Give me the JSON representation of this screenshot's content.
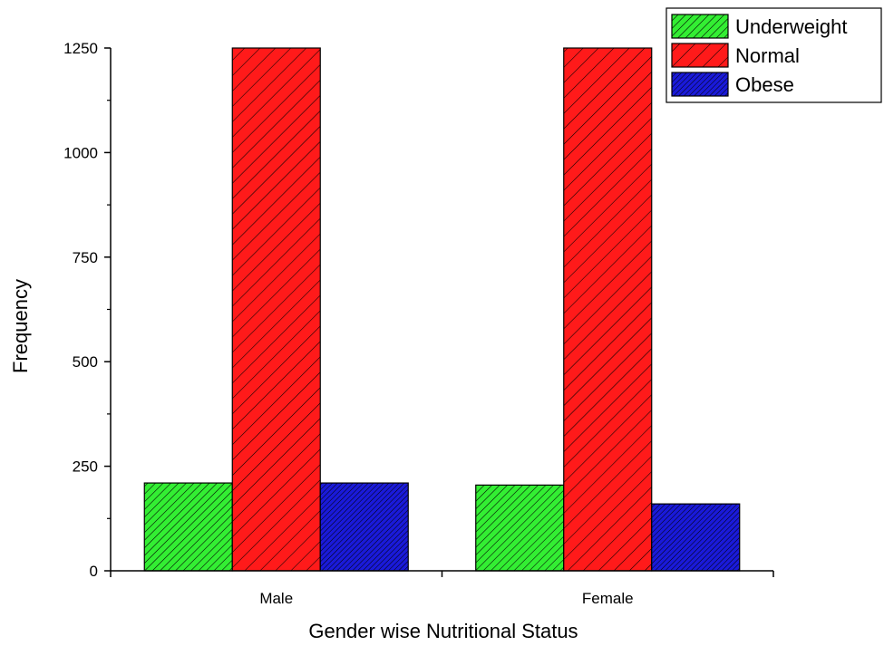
{
  "chart_data": {
    "type": "bar",
    "title": "",
    "xlabel": "Gender wise Nutritional Status",
    "ylabel": "Frequency",
    "categories": [
      "Male",
      "Female"
    ],
    "series": [
      {
        "name": "Underweight",
        "values": [
          210,
          205
        ],
        "color": "#33ee33"
      },
      {
        "name": "Normal",
        "values": [
          1250,
          1250
        ],
        "color": "#ff1a1a"
      },
      {
        "name": "Obese",
        "values": [
          210,
          160
        ],
        "color": "#1a1ad9"
      }
    ],
    "ylim": [
      0,
      1250
    ],
    "yticks": [
      "0",
      "250",
      "500",
      "750",
      "1000",
      "1250"
    ],
    "grid": false,
    "legend_position": "top-right",
    "bar_fill": "diagonal hatch"
  }
}
